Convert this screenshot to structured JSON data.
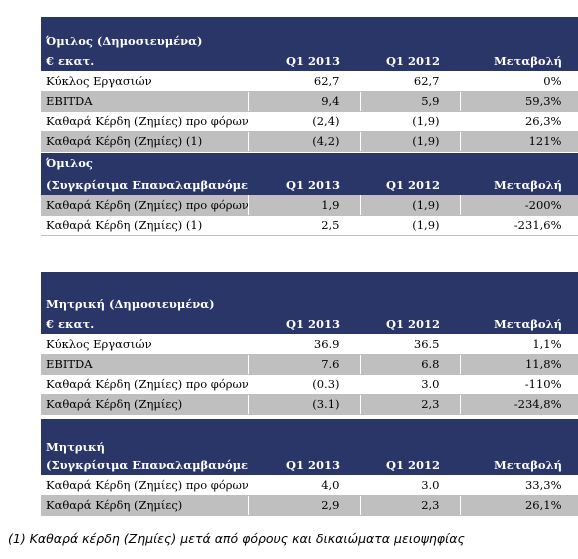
{
  "tables": [
    {
      "id": "group-reported",
      "title": "Όμιλος  (Δημοσιευμένα)",
      "subtitle": "€ εκατ.",
      "headers": [
        "Q1 2013",
        "Q1 2012",
        "Μεταβολή"
      ],
      "rows": [
        {
          "label": "Κύκλος Εργασιών",
          "q1_2013": "62,7",
          "q1_2012": "62,7",
          "change": "0%"
        },
        {
          "label": "EBITDA",
          "q1_2013": "9,4",
          "q1_2012": "5,9",
          "change": "59,3%"
        },
        {
          "label": "Καθαρά Κέρδη (Ζημίες)  προ φόρων",
          "q1_2013": "(2,4)",
          "q1_2012": "(1,9)",
          "change": "26,3%"
        },
        {
          "label": "Καθαρά Κέρδη (Ζημίες) (1)",
          "q1_2013": "(4,2)",
          "q1_2012": "(1,9)",
          "change": "121%"
        }
      ]
    },
    {
      "id": "group-comparable",
      "title": "Όμιλος",
      "subtitle": "(Συγκρίσιμα Επαναλαμβανόμενα )",
      "headers": [
        "Q1 2013",
        "Q1 2012",
        "Μεταβολή"
      ],
      "rows": [
        {
          "label": "Καθαρά Κέρδη (Ζημίες)  προ φόρων",
          "q1_2013": "1,9",
          "q1_2012": "(1,9)",
          "change": "-200%"
        },
        {
          "label": "Καθαρά Κέρδη (Ζημίες) (1)",
          "q1_2013": "2,5",
          "q1_2012": "(1,9)",
          "change": "-231,6%"
        }
      ]
    },
    {
      "id": "parent-reported",
      "title": "Μητρική (Δημοσιευμένα)",
      "subtitle": "€ εκατ.",
      "headers": [
        "Q1 2013",
        "Q1 2012",
        "Μεταβολή"
      ],
      "rows": [
        {
          "label": "Κύκλος Εργασιών",
          "q1_2013": "36.9",
          "q1_2012": "36.5",
          "change": "1,1%"
        },
        {
          "label": "EBITDA",
          "q1_2013": "7.6",
          "q1_2012": "6.8",
          "change": "11,8%"
        },
        {
          "label": "Καθαρά Κέρδη (Ζημίες) προ φόρων",
          "q1_2013": "(0.3)",
          "q1_2012": "3.0",
          "change": "-110%"
        },
        {
          "label": "Καθαρά Κέρδη (Ζημίες)",
          "q1_2013": "(3.1)",
          "q1_2012": "2,3",
          "change": "-234,8%"
        }
      ]
    },
    {
      "id": "parent-comparable",
      "title": "Μητρική",
      "subtitle": "(Συγκρίσιμα Επαναλαμβανόμενα )",
      "headers": [
        "Q1 2013",
        "Q1 2012",
        "Μεταβολή"
      ],
      "rows": [
        {
          "label": "Καθαρά Κέρδη (Ζημίες) προ φόρων",
          "q1_2013": "4,0",
          "q1_2012": "3.0",
          "change": "33,3%"
        },
        {
          "label": "Καθαρά Κέρδη (Ζημίες)",
          "q1_2013": "2,9",
          "q1_2012": "2,3",
          "change": "26,1%"
        }
      ]
    }
  ],
  "footnote": "(1) Καθαρά κέρδη (Ζημίες) μετά από φόρους και δικαιώματα μειοψηφίας",
  "colors": {
    "header_bg": "#2a3568",
    "shaded_row": "#bfbfbf"
  }
}
